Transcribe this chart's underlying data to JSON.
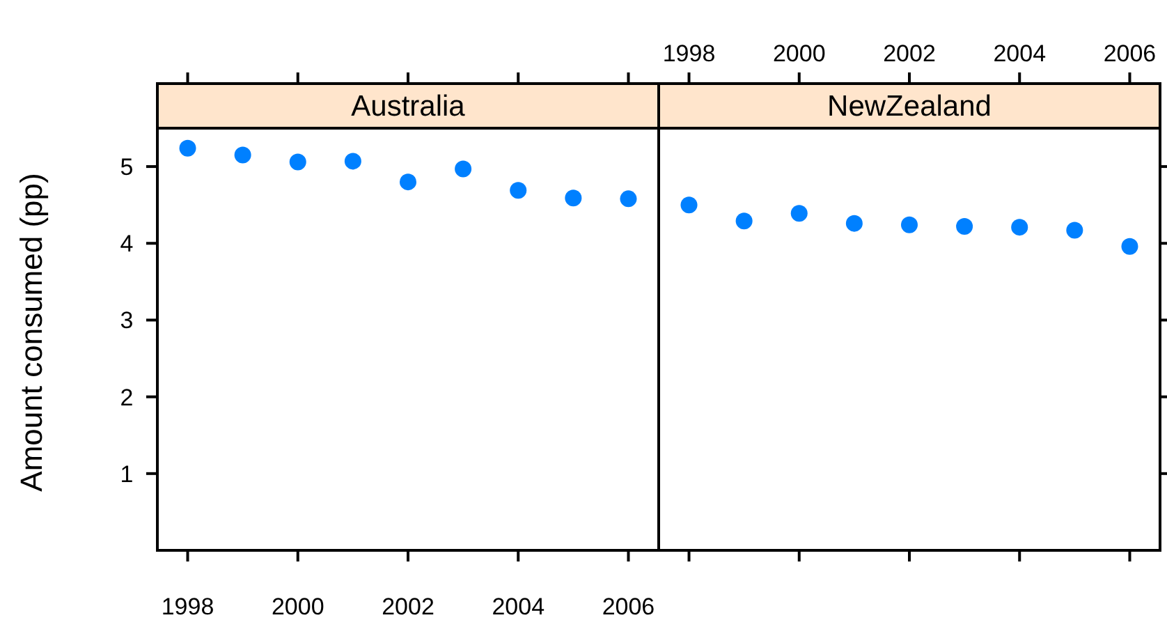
{
  "chart_data": [
    {
      "type": "scatter",
      "title": "Australia",
      "ylabel": "Amount consumed (pp)",
      "x": [
        1998,
        1999,
        2000,
        2001,
        2002,
        2003,
        2004,
        2005,
        2006
      ],
      "series": [
        {
          "color": "#0080ff",
          "values": [
            5.24,
            5.15,
            5.06,
            5.07,
            4.8,
            4.97,
            4.69,
            4.59,
            4.58
          ]
        }
      ],
      "xlim": [
        1997.45,
        2006.55
      ],
      "xticks": [
        1998,
        2000,
        2002,
        2004,
        2006
      ],
      "ylim": [
        0,
        5.5
      ],
      "yticks": [
        1,
        2,
        3,
        4,
        5
      ],
      "marker": "circle",
      "grid": false
    },
    {
      "type": "scatter",
      "title": "NewZealand",
      "x": [
        1998,
        1999,
        2000,
        2001,
        2002,
        2003,
        2004,
        2005,
        2006
      ],
      "series": [
        {
          "color": "#0080ff",
          "values": [
            4.5,
            4.29,
            4.39,
            4.26,
            4.24,
            4.22,
            4.21,
            4.17,
            3.96
          ]
        }
      ],
      "xlim": [
        1997.45,
        2006.55
      ],
      "xticks": [
        1998,
        2000,
        2002,
        2004,
        2006
      ],
      "ylim": [
        0,
        5.5
      ],
      "yticks": [
        1,
        2,
        3,
        4,
        5
      ],
      "tick_labels": "x",
      "marker": "circle",
      "grid": false
    }
  ]
}
